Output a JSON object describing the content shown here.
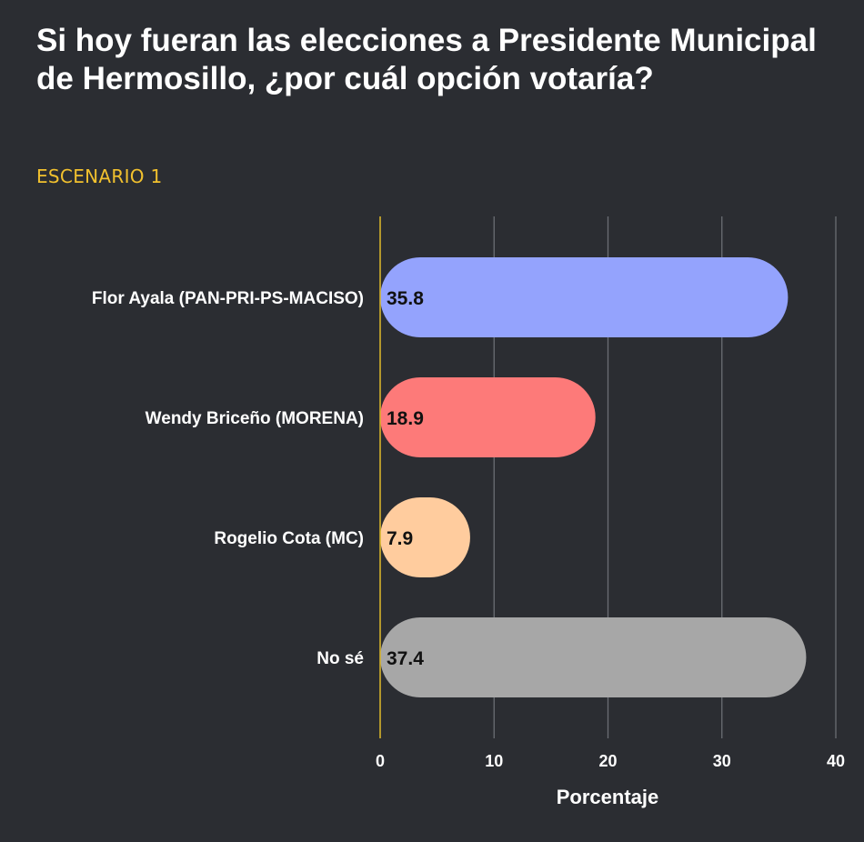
{
  "header": {
    "title": "Si hoy fueran las elecciones a Presidente Municipal de Hermosillo, ¿por cuál opción votaría?",
    "subtitle": "ESCENARIO 1"
  },
  "chart_data": {
    "type": "bar",
    "orientation": "horizontal",
    "title": "Si hoy fueran las elecciones a Presidente Municipal de Hermosillo, ¿por cuál opción votaría?",
    "subtitle": "ESCENARIO 1",
    "categories": [
      "Flor Ayala (PAN-PRI-PS-MACISO)",
      "Wendy Briceño (MORENA)",
      "Rogelio Cota (MC)",
      "No sé"
    ],
    "values": [
      35.8,
      18.9,
      7.9,
      37.4
    ],
    "data_labels": [
      "35.8",
      "18.9",
      "7.9",
      "37.4"
    ],
    "colors": [
      "#94a3fd",
      "#fd7a79",
      "#ffcc9e",
      "#a7a7a7"
    ],
    "xlabel": "Porcentaje",
    "ylabel": "",
    "xlim": [
      0,
      40
    ],
    "xticks": [
      0,
      10,
      20,
      30,
      40
    ],
    "xtick_labels": [
      "0",
      "10",
      "20",
      "30",
      "40"
    ],
    "grid": true,
    "legend": "none",
    "axis_line_color": "#d6b32a",
    "grid_color": "#6b6e74"
  }
}
